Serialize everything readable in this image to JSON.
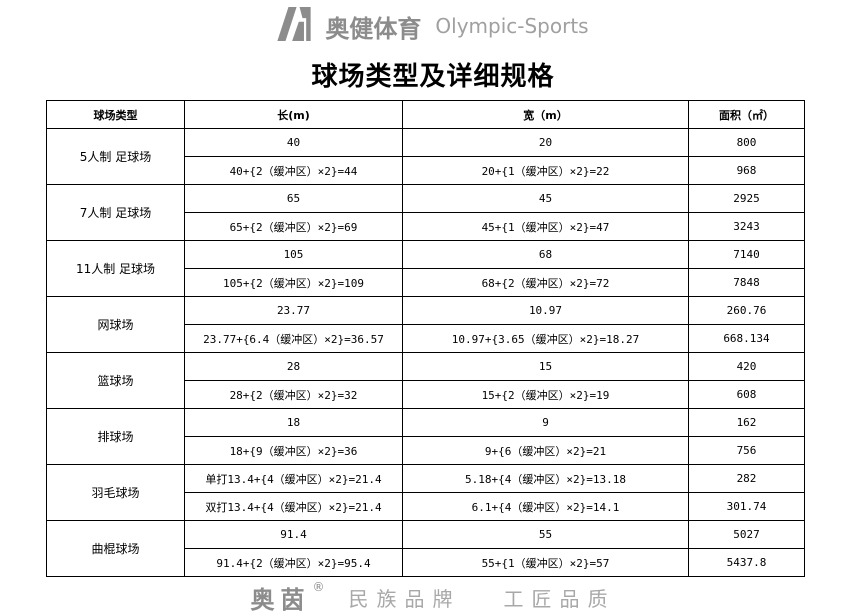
{
  "title": "球场类型及详细规格",
  "headers": [
    "球场类型",
    "长(m)",
    "宽（m）",
    "面积（㎡）"
  ],
  "rows": [
    {
      "type": "5人制 足球场",
      "lines": [
        [
          "40",
          "20",
          "800"
        ],
        [
          "40+{2（缓冲区）×2}=44",
          "20+{1（缓冲区）×2}=22",
          "968"
        ]
      ]
    },
    {
      "type": "7人制 足球场",
      "lines": [
        [
          "65",
          "45",
          "2925"
        ],
        [
          "65+{2（缓冲区）×2}=69",
          "45+{1（缓冲区）×2}=47",
          "3243"
        ]
      ]
    },
    {
      "type": "11人制 足球场",
      "lines": [
        [
          "105",
          "68",
          "7140"
        ],
        [
          "105+{2（缓冲区）×2}=109",
          "68+{2（缓冲区）×2}=72",
          "7848"
        ]
      ]
    },
    {
      "type": "网球场",
      "lines": [
        [
          "23.77",
          "10.97",
          "260.76"
        ],
        [
          "23.77+{6.4（缓冲区）×2}=36.57",
          "10.97+{3.65（缓冲区）×2}=18.27",
          "668.134"
        ]
      ]
    },
    {
      "type": "篮球场",
      "lines": [
        [
          "28",
          "15",
          "420"
        ],
        [
          "28+{2（缓冲区）×2}=32",
          "15+{2（缓冲区）×2}=19",
          "608"
        ]
      ]
    },
    {
      "type": "排球场",
      "lines": [
        [
          "18",
          "9",
          "162"
        ],
        [
          "18+{9（缓冲区）×2}=36",
          "9+{6（缓冲区）×2}=21",
          "756"
        ]
      ]
    },
    {
      "type": "羽毛球场",
      "lines": [
        [
          "单打13.4+{4（缓冲区）×2}=21.4",
          "5.18+{4（缓冲区）×2}=13.18",
          "282"
        ],
        [
          "双打13.4+{4（缓冲区）×2}=21.4",
          "6.1+{4（缓冲区）×2}=14.1",
          "301.74"
        ]
      ]
    },
    {
      "type": "曲棍球场",
      "lines": [
        [
          "91.4",
          "55",
          "5027"
        ],
        [
          "91.4+{2（缓冲区）×2}=95.4",
          "55+{1（缓冲区）×2}=57",
          "5437.8"
        ]
      ]
    }
  ],
  "watermark": {
    "company_cn": "奥健体育",
    "company_en": "Olympic-Sports",
    "brand": "奥茵",
    "slogan": "民族品牌   工匠品质",
    "registered": "®",
    "color": "#8c8c8c"
  }
}
